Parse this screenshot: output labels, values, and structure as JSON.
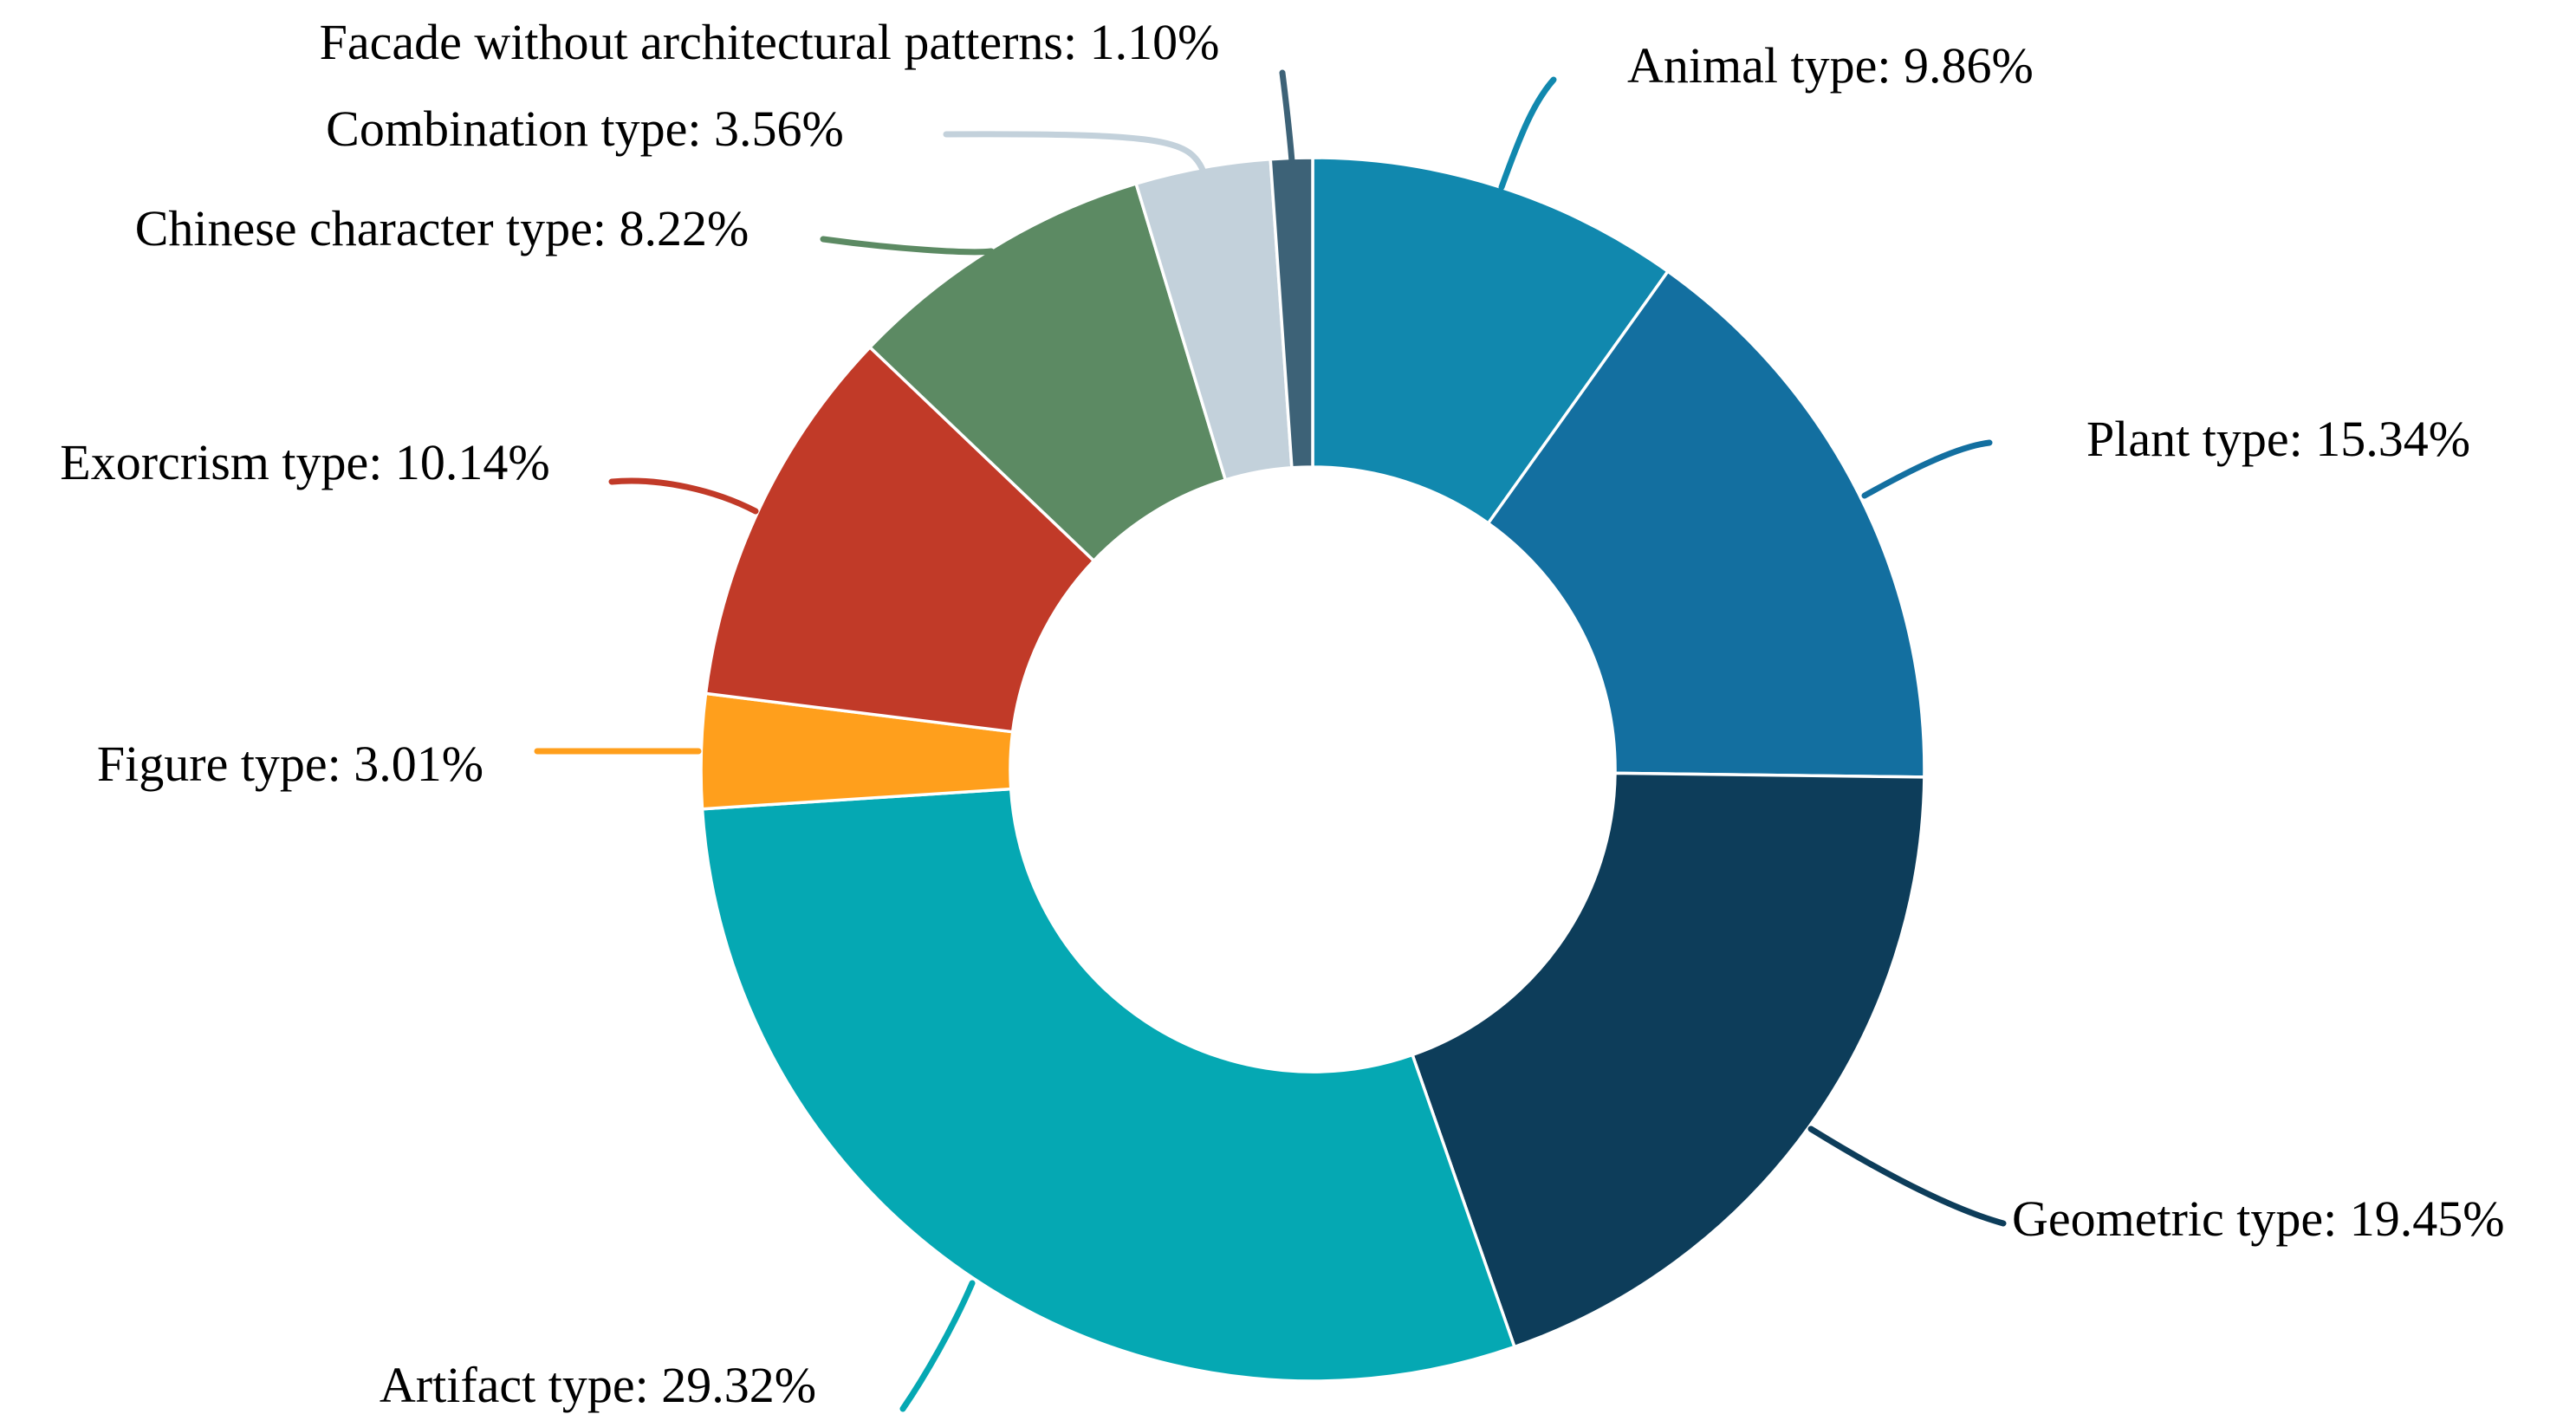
{
  "figure": {
    "background": "#ffffff",
    "text_color": "#000000"
  },
  "chart_data": {
    "type": "pie",
    "variant": "donut",
    "title": "",
    "direction": "clockwise",
    "start_angle_deg": 0,
    "inner_radius_ratio": 0.49,
    "legend_position": "none",
    "grid": false,
    "slice_border_color": "#ffffff",
    "categories": [
      "Animal type",
      "Plant type",
      "Geometric type",
      "Artifact type",
      "Figure type",
      "Exorcrism type",
      "Chinese character type",
      "Combination type",
      "Facade without architectural patterns"
    ],
    "values": [
      9.86,
      15.34,
      19.45,
      29.32,
      3.01,
      10.14,
      8.22,
      3.56,
      1.1
    ],
    "labels": [
      "Animal type: 9.86%",
      "Plant type: 15.34%",
      "Geometric type: 19.45%",
      "Artifact type: 29.32%",
      "Figure type: 3.01%",
      "Exorcrism type: 10.14%",
      "Chinese character type: 8.22%",
      "Combination type: 3.56%",
      "Facade without architectural patterns: 1.10%"
    ],
    "colors": [
      "#1188AE",
      "#136FA0",
      "#0D3D5A",
      "#05A8B3",
      "#FF9F1C",
      "#C13A28",
      "#5C8A63",
      "#C3D1DB",
      "#3D6277"
    ]
  }
}
